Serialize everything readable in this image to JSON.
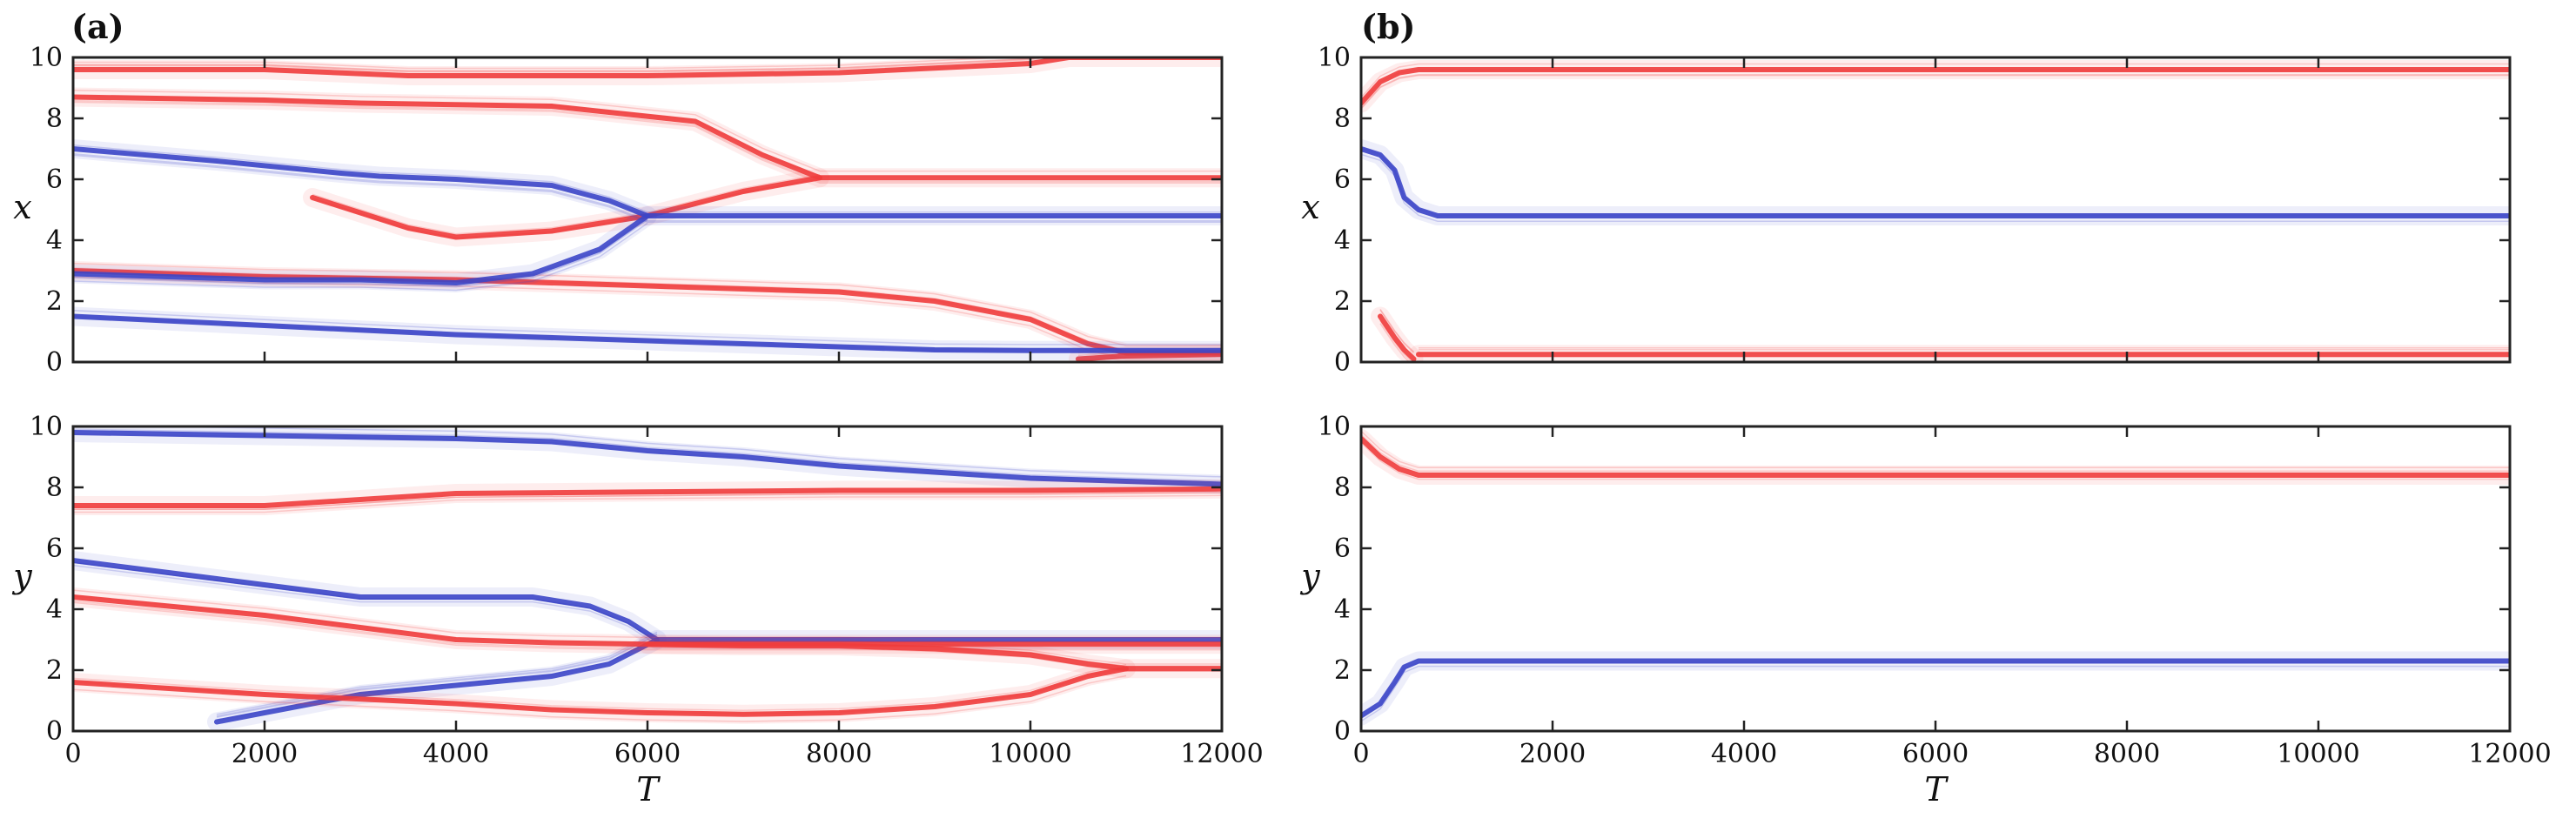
{
  "figure": {
    "panel_labels": [
      "(a)",
      "(b)"
    ],
    "colors": {
      "red": "#f03c3c",
      "blue": "#3c46c8"
    }
  },
  "chart_data": [
    {
      "id": "a-x",
      "type": "line",
      "panel": "(a)",
      "title": "",
      "xlabel": "",
      "ylabel": "x",
      "xlim": [
        0,
        12000
      ],
      "ylim": [
        0,
        10
      ],
      "xticks": [
        0,
        2000,
        4000,
        6000,
        8000,
        10000,
        12000
      ],
      "yticks": [
        0,
        2,
        4,
        6,
        8,
        10
      ],
      "show_xticklabels": false,
      "series": [
        {
          "color": "#f03c3c",
          "x": [
            0,
            2000,
            3500,
            6000,
            8000,
            10000,
            10400,
            12000
          ],
          "y": [
            9.6,
            9.6,
            9.4,
            9.4,
            9.5,
            9.8,
            10,
            10
          ]
        },
        {
          "color": "#f03c3c",
          "x": [
            0,
            2000,
            3000,
            5000,
            6500,
            7200,
            7800,
            12000
          ],
          "y": [
            8.7,
            8.6,
            8.5,
            8.4,
            7.9,
            6.8,
            6.05,
            6.05
          ]
        },
        {
          "color": "#f03c3c",
          "x": [
            2500,
            3500,
            4000,
            5000,
            6000,
            7000,
            7800
          ],
          "y": [
            5.4,
            4.4,
            4.1,
            4.3,
            4.8,
            5.6,
            6.05
          ]
        },
        {
          "color": "#f03c3c",
          "x": [
            0,
            2000,
            4000,
            6000,
            8000,
            9000,
            10000,
            10600,
            11000,
            12000
          ],
          "y": [
            3.0,
            2.8,
            2.7,
            2.5,
            2.3,
            2.0,
            1.4,
            0.6,
            0.3,
            0.3
          ]
        },
        {
          "color": "#f03c3c",
          "x": [
            10500,
            11000,
            12000
          ],
          "y": [
            0.1,
            0.2,
            0.25
          ]
        },
        {
          "color": "#3c46c8",
          "x": [
            0,
            1500,
            2800,
            3200,
            4000,
            5000,
            5600,
            6000,
            7000,
            12000
          ],
          "y": [
            7.0,
            6.6,
            6.2,
            6.1,
            6.0,
            5.8,
            5.3,
            4.8,
            4.8,
            4.8
          ]
        },
        {
          "color": "#3c46c8",
          "x": [
            0,
            2000,
            3000,
            4000,
            4800,
            5500,
            6000
          ],
          "y": [
            2.9,
            2.7,
            2.7,
            2.6,
            2.9,
            3.7,
            4.8
          ]
        },
        {
          "color": "#3c46c8",
          "x": [
            0,
            2000,
            4000,
            6000,
            8000,
            9000,
            10000,
            12000
          ],
          "y": [
            1.5,
            1.2,
            0.9,
            0.7,
            0.5,
            0.4,
            0.38,
            0.38
          ]
        }
      ]
    },
    {
      "id": "a-y",
      "type": "line",
      "panel": "(a)",
      "title": "",
      "xlabel": "T",
      "ylabel": "y",
      "xlim": [
        0,
        12000
      ],
      "ylim": [
        0,
        10
      ],
      "xticks": [
        0,
        2000,
        4000,
        6000,
        8000,
        10000,
        12000
      ],
      "yticks": [
        0,
        2,
        4,
        6,
        8,
        10
      ],
      "show_xticklabels": true,
      "series": [
        {
          "color": "#3c46c8",
          "x": [
            0,
            2000,
            4000,
            5000,
            6000,
            7000,
            8000,
            10000,
            12000
          ],
          "y": [
            9.8,
            9.7,
            9.6,
            9.5,
            9.2,
            9.0,
            8.7,
            8.3,
            8.1
          ]
        },
        {
          "color": "#f03c3c",
          "x": [
            0,
            1000,
            2000,
            3000,
            4000,
            6000,
            8000,
            10000,
            12000
          ],
          "y": [
            7.4,
            7.4,
            7.4,
            7.6,
            7.8,
            7.85,
            7.9,
            7.9,
            7.95
          ]
        },
        {
          "color": "#3c46c8",
          "x": [
            0,
            1500,
            2500,
            3000,
            4000,
            4800,
            5400,
            5800,
            6100,
            7000,
            12000
          ],
          "y": [
            5.6,
            5.0,
            4.6,
            4.4,
            4.4,
            4.4,
            4.1,
            3.6,
            3.0,
            3.0,
            3.0
          ]
        },
        {
          "color": "#3c46c8",
          "x": [
            1500,
            2500,
            3000,
            4000,
            5000,
            5600,
            6100
          ],
          "y": [
            0.3,
            0.9,
            1.2,
            1.5,
            1.8,
            2.2,
            3.0
          ]
        },
        {
          "color": "#f03c3c",
          "x": [
            0,
            2000,
            3000,
            4000,
            5000,
            6000,
            7000,
            12000
          ],
          "y": [
            4.4,
            3.8,
            3.4,
            3.0,
            2.9,
            2.85,
            2.85,
            2.85
          ]
        },
        {
          "color": "#f03c3c",
          "x": [
            6000,
            7000,
            8000,
            9000,
            10000,
            10600,
            11000,
            12000
          ],
          "y": [
            2.85,
            2.8,
            2.8,
            2.7,
            2.5,
            2.2,
            2.05,
            2.05
          ]
        },
        {
          "color": "#f03c3c",
          "x": [
            0,
            2000,
            4000,
            5000,
            6000,
            7000,
            8000,
            9000,
            10000,
            10600,
            11000
          ],
          "y": [
            1.6,
            1.2,
            0.9,
            0.7,
            0.6,
            0.55,
            0.6,
            0.8,
            1.2,
            1.8,
            2.05
          ]
        }
      ]
    },
    {
      "id": "b-x",
      "type": "line",
      "panel": "(b)",
      "title": "",
      "xlabel": "",
      "ylabel": "x",
      "xlim": [
        0,
        12000
      ],
      "ylim": [
        0,
        10
      ],
      "xticks": [
        0,
        2000,
        4000,
        6000,
        8000,
        10000,
        12000
      ],
      "yticks": [
        0,
        2,
        4,
        6,
        8,
        10
      ],
      "show_xticklabels": false,
      "series": [
        {
          "color": "#f03c3c",
          "x": [
            0,
            200,
            400,
            600,
            12000
          ],
          "y": [
            8.5,
            9.2,
            9.5,
            9.6,
            9.6
          ]
        },
        {
          "color": "#3c46c8",
          "x": [
            0,
            200,
            350,
            450,
            600,
            800,
            12000
          ],
          "y": [
            7.0,
            6.8,
            6.3,
            5.4,
            5.0,
            4.8,
            4.8
          ]
        },
        {
          "color": "#f03c3c",
          "x": [
            200,
            350,
            450,
            550
          ],
          "y": [
            1.5,
            0.8,
            0.4,
            0.1
          ]
        },
        {
          "color": "#f03c3c",
          "x": [
            600,
            12000
          ],
          "y": [
            0.25,
            0.25
          ]
        }
      ]
    },
    {
      "id": "b-y",
      "type": "line",
      "panel": "(b)",
      "title": "",
      "xlabel": "T",
      "ylabel": "y",
      "xlim": [
        0,
        12000
      ],
      "ylim": [
        0,
        10
      ],
      "xticks": [
        0,
        2000,
        4000,
        6000,
        8000,
        10000,
        12000
      ],
      "yticks": [
        0,
        2,
        4,
        6,
        8,
        10
      ],
      "show_xticklabels": true,
      "series": [
        {
          "color": "#f03c3c",
          "x": [
            0,
            200,
            400,
            600,
            12000
          ],
          "y": [
            9.6,
            9.0,
            8.6,
            8.4,
            8.4
          ]
        },
        {
          "color": "#3c46c8",
          "x": [
            0,
            200,
            350,
            450,
            600,
            12000
          ],
          "y": [
            0.5,
            0.9,
            1.6,
            2.1,
            2.3,
            2.3
          ]
        }
      ]
    }
  ]
}
